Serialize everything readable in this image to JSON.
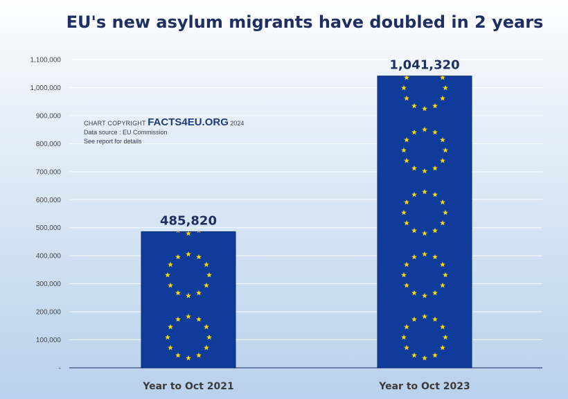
{
  "title": "EU's new asylum migrants have doubled in 2 years",
  "credit": {
    "lead": "CHART COPYRIGHT",
    "brand": "FACTS4EU.ORG",
    "year": "2024",
    "source": "Data source : EU Commission",
    "note": "See report for details"
  },
  "colors": {
    "bar": "#0f3b9a",
    "bar_border": "#0a2a70",
    "star": "#f5d80f",
    "title": "#1f2f63",
    "axis_text": "#444444"
  },
  "chart_data": {
    "type": "bar",
    "title": "EU's new asylum migrants have doubled in 2 years",
    "categories": [
      "Year to Oct 2021",
      "Year to Oct 2023"
    ],
    "values": [
      485820,
      1041320
    ],
    "value_labels": [
      "485,820",
      "1,041,320"
    ],
    "ylim": [
      0,
      1100000
    ],
    "yticks": [
      0,
      100000,
      200000,
      300000,
      400000,
      500000,
      600000,
      700000,
      800000,
      900000,
      1000000,
      1100000
    ],
    "ytick_labels": [
      "-",
      "100,000",
      "200,000",
      "300,000",
      "400,000",
      "500,000",
      "600,000",
      "700,000",
      "800,000",
      "900,000",
      "1,000,000",
      "1,100,000"
    ],
    "grid": true,
    "bar_style": "EU flag: star circles on blue"
  }
}
